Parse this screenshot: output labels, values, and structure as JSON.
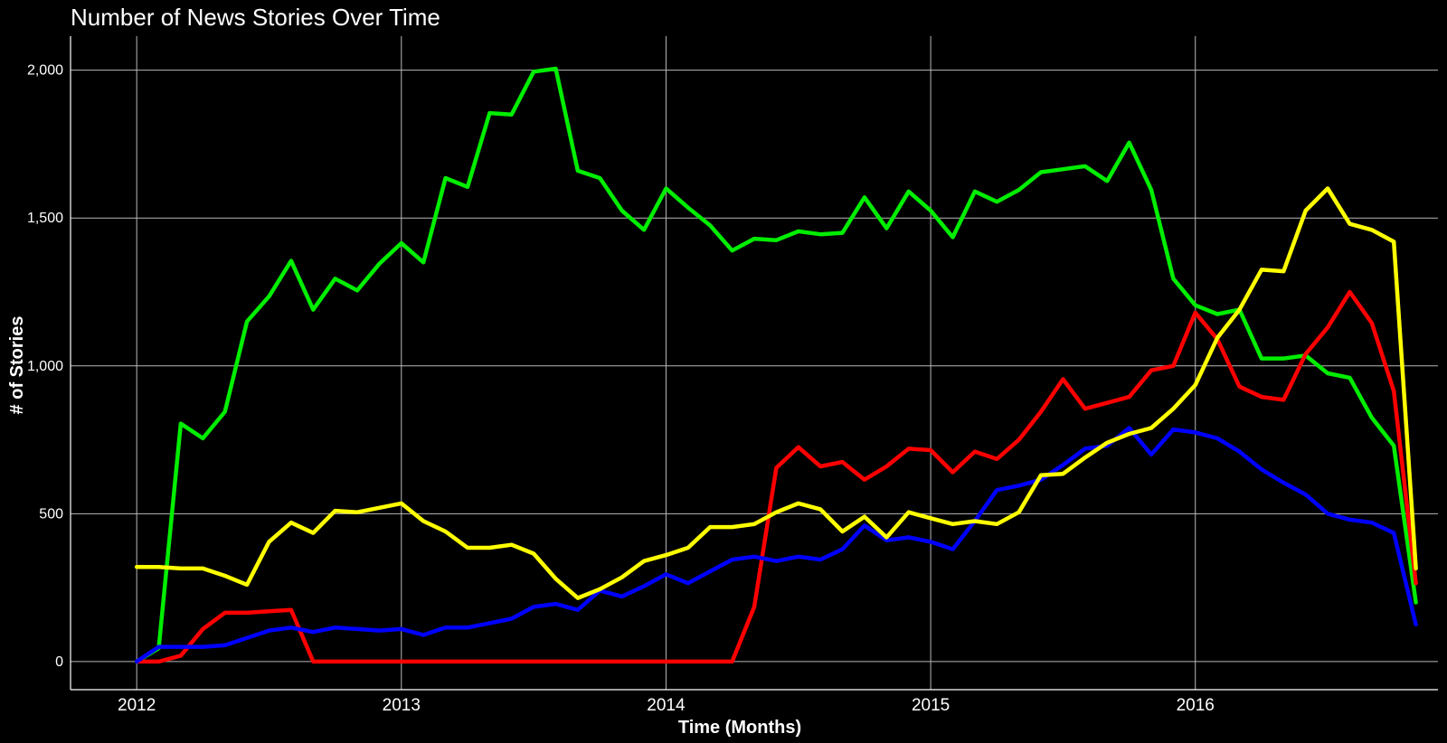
{
  "chart_data": {
    "type": "line",
    "title": "Number of News Stories Over Time",
    "xlabel": "Time (Months)",
    "ylabel": "# of Stories",
    "x_start": "2012-01",
    "x_step": "month",
    "xlim": [
      "2011-10",
      "2016-12"
    ],
    "ylim": [
      -95,
      2115
    ],
    "x_ticks": [
      {
        "value": "2012-01",
        "label": "2012"
      },
      {
        "value": "2013-01",
        "label": "2013"
      },
      {
        "value": "2014-01",
        "label": "2014"
      },
      {
        "value": "2015-01",
        "label": "2015"
      },
      {
        "value": "2016-01",
        "label": "2016"
      }
    ],
    "y_ticks": [
      {
        "value": 0,
        "label": "0"
      },
      {
        "value": 500,
        "label": "500"
      },
      {
        "value": 1000,
        "label": "1,000"
      },
      {
        "value": 1500,
        "label": "1,500"
      },
      {
        "value": 2000,
        "label": "2,000"
      }
    ],
    "grid": true,
    "legend": "none",
    "series": [
      {
        "color": "#00ee00",
        "values": [
          0,
          45,
          805,
          755,
          845,
          1150,
          1235,
          1355,
          1190,
          1295,
          1255,
          1345,
          1415,
          1350,
          1635,
          1605,
          1855,
          1850,
          1995,
          2005,
          1660,
          1635,
          1525,
          1460,
          1600,
          1535,
          1475,
          1390,
          1430,
          1425,
          1455,
          1445,
          1450,
          1570,
          1465,
          1590,
          1525,
          1435,
          1590,
          1555,
          1595,
          1655,
          1665,
          1675,
          1625,
          1755,
          1595,
          1295,
          1205,
          1175,
          1190,
          1025,
          1025,
          1035,
          975,
          960,
          825,
          730,
          200
        ]
      },
      {
        "color": "#ff0000",
        "values": [
          0,
          0,
          20,
          110,
          165,
          165,
          170,
          175,
          0,
          0,
          0,
          0,
          0,
          0,
          0,
          0,
          0,
          0,
          0,
          0,
          0,
          0,
          0,
          0,
          0,
          0,
          0,
          0,
          185,
          655,
          725,
          660,
          675,
          615,
          660,
          720,
          715,
          640,
          710,
          685,
          750,
          845,
          955,
          855,
          875,
          895,
          985,
          1000,
          1180,
          1090,
          930,
          895,
          885,
          1040,
          1130,
          1250,
          1145,
          915,
          265
        ]
      },
      {
        "color": "#0000ff",
        "values": [
          0,
          50,
          50,
          50,
          55,
          80,
          105,
          115,
          100,
          115,
          110,
          105,
          110,
          90,
          115,
          115,
          130,
          145,
          185,
          195,
          175,
          240,
          220,
          255,
          295,
          265,
          305,
          345,
          355,
          340,
          355,
          345,
          380,
          460,
          410,
          420,
          405,
          380,
          475,
          580,
          595,
          615,
          665,
          720,
          730,
          790,
          700,
          785,
          775,
          755,
          710,
          650,
          605,
          565,
          500,
          480,
          470,
          435,
          125
        ]
      },
      {
        "color": "#ffff00",
        "values": [
          320,
          320,
          315,
          315,
          290,
          260,
          405,
          470,
          435,
          510,
          505,
          520,
          535,
          475,
          440,
          385,
          385,
          395,
          365,
          280,
          215,
          245,
          285,
          340,
          360,
          385,
          455,
          455,
          465,
          505,
          535,
          515,
          440,
          490,
          420,
          505,
          485,
          465,
          475,
          465,
          505,
          630,
          635,
          690,
          740,
          770,
          790,
          855,
          935,
          1095,
          1190,
          1325,
          1320,
          1525,
          1600,
          1480,
          1460,
          1420,
          315
        ]
      }
    ]
  }
}
